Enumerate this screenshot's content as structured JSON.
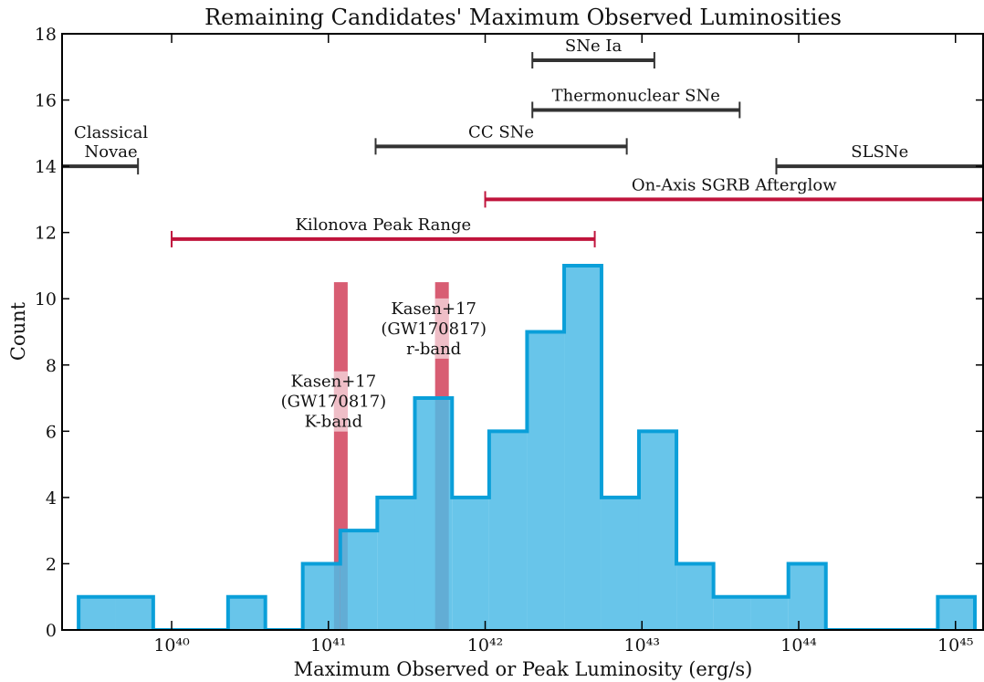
{
  "chart_data": {
    "type": "histogram",
    "title": "Remaining Candidates' Maximum Observed Luminosities",
    "xlabel": "Maximum Observed or Peak Luminosity (erg/s)",
    "ylabel": "Count",
    "xscale": "log",
    "bins": [
      2.55e+39,
      4.41e+39,
      7.63e+39,
      1.32e+40,
      2.29e+40,
      3.96e+40,
      6.86e+40,
      1.19e+41,
      2.05e+41,
      3.56e+41,
      6.15e+41,
      1.06e+42,
      1.85e+42,
      3.19e+42,
      5.52e+42,
      9.57e+42,
      1.66e+43,
      2.86e+43,
      4.95e+43,
      8.59e+43,
      1.49e+44,
      2.57e+44,
      4.46e+44,
      7.71e+44,
      1.33e+45
    ],
    "counts": [
      1,
      1,
      0,
      0,
      1,
      0,
      2,
      3,
      4,
      7,
      4,
      6,
      9,
      11,
      4,
      6,
      2,
      1,
      1,
      2,
      0,
      0,
      0,
      1
    ],
    "color": "#4dbbe6",
    "edgecolor": "#0a9fd9",
    "xlim": [
      2e+39,
      1.5e+45
    ],
    "ylim": [
      0,
      18
    ],
    "xticks": [
      {
        "value": 1e+40,
        "label": "10⁴⁰"
      },
      {
        "value": 1e+41,
        "label": "10⁴¹"
      },
      {
        "value": 1e+42,
        "label": "10⁴²"
      },
      {
        "value": 1e+43,
        "label": "10⁴³"
      },
      {
        "value": 1e+44,
        "label": "10⁴⁴"
      },
      {
        "value": 1e+45,
        "label": "10⁴⁵"
      }
    ],
    "yticks": [
      0,
      2,
      4,
      6,
      8,
      10,
      12,
      14,
      16,
      18
    ],
    "ranges": [
      {
        "lines": [
          "SNe Ia"
        ],
        "start": 2e+42,
        "end": 1.2e+43,
        "y": 17.2,
        "color": "#333333"
      },
      {
        "lines": [
          "Thermonuclear SNe"
        ],
        "start": 2e+42,
        "end": 4.2e+43,
        "y": 15.7,
        "color": "#333333"
      },
      {
        "lines": [
          "CC SNe"
        ],
        "start": 2e+41,
        "end": 8e+42,
        "y": 14.6,
        "color": "#333333"
      },
      {
        "lines": [
          "Classical",
          "Novae"
        ],
        "start": 2e+39,
        "end": 6.1e+39,
        "y": 14,
        "color": "#333333"
      },
      {
        "lines": [
          "SLSNe"
        ],
        "start": 7.2e+43,
        "end": 1e+46,
        "y": 14,
        "color": "#333333"
      },
      {
        "lines": [
          "On-Axis SGRB Afterglow"
        ],
        "start": 1e+42,
        "end": 1e+46,
        "y": 13,
        "color": "#c0143c"
      },
      {
        "lines": [
          "Kilonova Peak Range"
        ],
        "start": 1e+40,
        "end": 5e+42,
        "y": 11.8,
        "color": "#c0143c"
      }
    ],
    "bands": [
      {
        "lines": [
          "Kasen+17",
          "(GW170817)",
          "K-band"
        ],
        "x": 1.2e+41,
        "top": 10.5,
        "color": "#d6546b"
      },
      {
        "lines": [
          "Kasen+17",
          "(GW170817)",
          "r-band"
        ],
        "x": 5.3e+41,
        "top": 10.5,
        "color": "#d6546b"
      }
    ]
  }
}
